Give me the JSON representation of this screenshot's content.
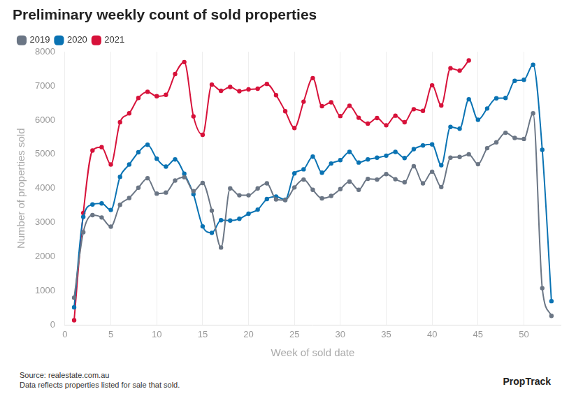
{
  "chart_data": {
    "type": "line",
    "title": "Preliminary weekly count of sold properties",
    "x_label": "Week of sold date",
    "y_label": "Number of properties sold",
    "annotations": [
      "Source: realestate.com.au",
      "Data reflects properties listed for sale that sold.",
      "PropTrack"
    ],
    "x": [
      1,
      2,
      3,
      4,
      5,
      6,
      7,
      8,
      9,
      10,
      11,
      12,
      13,
      14,
      15,
      16,
      17,
      18,
      19,
      20,
      21,
      22,
      23,
      24,
      25,
      26,
      27,
      28,
      29,
      30,
      31,
      32,
      33,
      34,
      35,
      36,
      37,
      38,
      39,
      40,
      41,
      42,
      43,
      44,
      45,
      46,
      47,
      48,
      49,
      50,
      51,
      52,
      53
    ],
    "series": [
      {
        "name": "2019",
        "color": "#6b7685",
        "values": [
          800,
          2720,
          3220,
          3150,
          2880,
          3520,
          3720,
          4020,
          4300,
          3850,
          3880,
          4230,
          4330,
          3920,
          4160,
          3350,
          2270,
          4000,
          3800,
          3800,
          4000,
          4150,
          3680,
          3660,
          4030,
          4260,
          3960,
          3710,
          3780,
          3980,
          4200,
          3960,
          4280,
          4260,
          4420,
          4270,
          4180,
          4650,
          4150,
          4490,
          4040,
          4900,
          4920,
          5000,
          4710,
          5180,
          5350,
          5630,
          5480,
          5450,
          6200,
          1080,
          270
        ]
      },
      {
        "name": "2020",
        "color": "#0a73b3",
        "values": [
          520,
          3170,
          3530,
          3560,
          3370,
          4340,
          4700,
          5060,
          5280,
          4870,
          4640,
          4850,
          4430,
          3830,
          2890,
          2700,
          3070,
          3060,
          3110,
          3260,
          3380,
          3690,
          3760,
          3670,
          4440,
          4560,
          4930,
          4460,
          4730,
          4830,
          5070,
          4760,
          4850,
          4900,
          4960,
          5070,
          4890,
          5150,
          5260,
          5290,
          4680,
          5800,
          5750,
          6610,
          6010,
          6340,
          6640,
          6650,
          7150,
          7180,
          7620,
          5130,
          700
        ]
      },
      {
        "name": "2021",
        "color": "#d7123a",
        "values": [
          140,
          3280,
          5110,
          5210,
          4700,
          5940,
          6200,
          6650,
          6830,
          6700,
          6740,
          7350,
          7700,
          6110,
          5570,
          7040,
          6860,
          6970,
          6850,
          6900,
          6920,
          7060,
          6730,
          6260,
          5770,
          6540,
          7230,
          6410,
          6520,
          6120,
          6420,
          6070,
          5900,
          6060,
          5850,
          6130,
          5940,
          6320,
          6270,
          7020,
          6430,
          7520,
          7450,
          7750,
          null,
          null,
          null,
          null,
          null,
          null,
          null,
          null,
          null
        ]
      }
    ],
    "xlim": [
      0,
      54
    ],
    "xticks": [
      0,
      5,
      10,
      15,
      20,
      25,
      30,
      35,
      40,
      45,
      50
    ],
    "ylim": [
      0,
      8000
    ],
    "yticks": [
      0,
      1000,
      2000,
      3000,
      4000,
      5000,
      6000,
      7000,
      8000
    ],
    "grid": "x",
    "legend": "top-left",
    "marker": "circle",
    "line_style": "solid"
  }
}
